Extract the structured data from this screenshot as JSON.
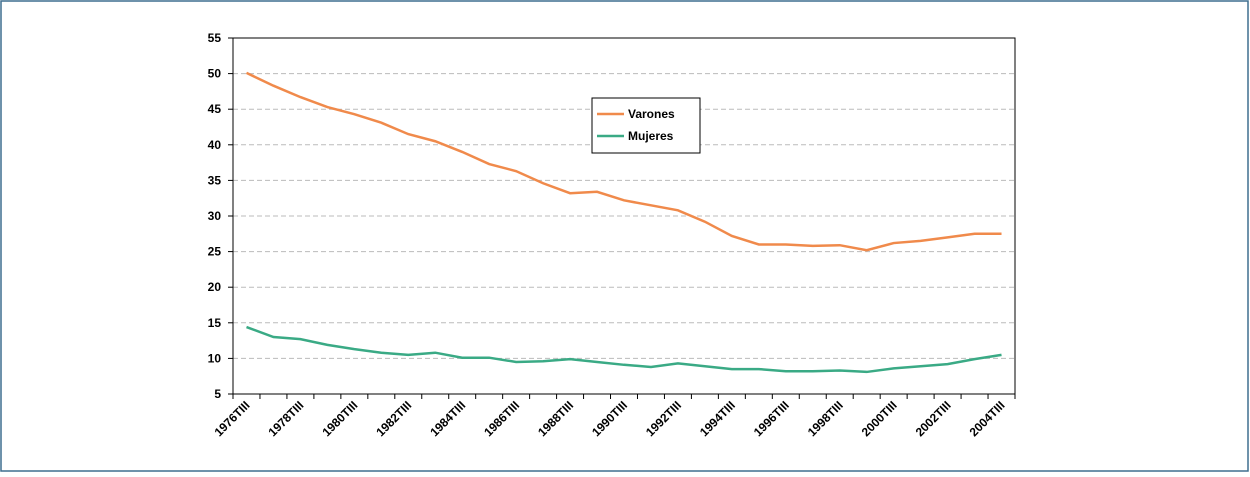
{
  "chart_data": {
    "type": "line",
    "categories": [
      "1976TIII",
      null,
      "1978TIII",
      null,
      "1980TIII",
      null,
      "1982TIII",
      null,
      "1984TIII",
      null,
      "1986TIII",
      null,
      "1988TIII",
      null,
      "1990TIII",
      null,
      "1992TIII",
      null,
      "1994TIII",
      null,
      "1996TIII",
      null,
      "1998TIII",
      null,
      "2000TIII",
      null,
      "2002TIII",
      null,
      "2004TIII"
    ],
    "series": [
      {
        "name": "Varones",
        "color": "#f08a4b",
        "values": [
          50.1,
          48.3,
          46.7,
          45.3,
          44.3,
          43.1,
          41.5,
          40.5,
          39.0,
          37.3,
          36.3,
          34.6,
          33.2,
          33.4,
          32.2,
          31.5,
          30.8,
          29.2,
          27.2,
          26.0,
          26.0,
          25.8,
          25.9,
          25.2,
          26.2,
          26.5,
          27.0,
          27.5,
          27.5
        ]
      },
      {
        "name": "Mujeres",
        "color": "#3aaa85",
        "values": [
          14.4,
          13.0,
          12.7,
          11.9,
          11.3,
          10.8,
          10.5,
          10.8,
          10.1,
          10.1,
          9.5,
          9.6,
          9.9,
          9.5,
          9.1,
          8.8,
          9.3,
          8.9,
          8.5,
          8.5,
          8.2,
          8.2,
          8.3,
          8.1,
          8.6,
          8.9,
          9.2,
          9.9,
          10.5
        ]
      }
    ],
    "ylim": [
      5,
      55
    ],
    "yticks": [
      5,
      10,
      15,
      20,
      25,
      30,
      35,
      40,
      45,
      50,
      55
    ],
    "grid": true
  }
}
